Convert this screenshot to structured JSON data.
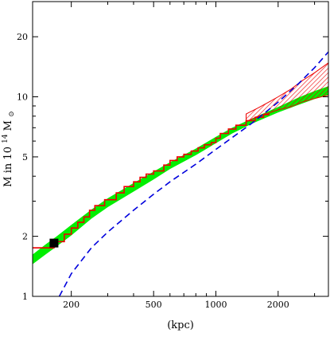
{
  "chart_data": {
    "type": "line",
    "title": "",
    "xlabel": "(kpc)",
    "ylabel_parts": {
      "prefix": "M in 10",
      "exp": "14",
      "unit": " M",
      "sub": "⊙"
    },
    "xscale": "log",
    "yscale": "log",
    "xlim": [
      130,
      3500
    ],
    "ylim": [
      1,
      30
    ],
    "xticks": [
      200,
      500,
      1000,
      2000
    ],
    "xtick_labels": [
      "200",
      "500",
      "1000",
      "2000"
    ],
    "yticks": [
      1,
      2,
      5,
      10,
      20
    ],
    "ytick_labels": [
      "1",
      "2",
      "5",
      "10",
      "20"
    ],
    "grid": false,
    "legend": "none",
    "series": [
      {
        "style": "green-band",
        "color": "#00ee00",
        "x": [
          130,
          150,
          170,
          200,
          250,
          300,
          400,
          500,
          600,
          800,
          1000,
          1200,
          1500,
          2000,
          2500,
          3000,
          3500
        ],
        "y_low": [
          1.45,
          1.62,
          1.78,
          2.02,
          2.45,
          2.8,
          3.35,
          3.85,
          4.35,
          5.1,
          5.85,
          6.55,
          7.35,
          8.35,
          9.1,
          9.75,
          10.2
        ],
        "y_high": [
          1.62,
          1.82,
          2.0,
          2.28,
          2.72,
          3.1,
          3.7,
          4.22,
          4.7,
          5.5,
          6.3,
          7.0,
          7.8,
          8.9,
          9.9,
          10.7,
          11.3
        ]
      },
      {
        "style": "red-hatched-band",
        "color": "#ee0000",
        "x": [
          1400,
          1600,
          1800,
          2000,
          2300,
          2600,
          3000,
          3500
        ],
        "y_low": [
          7.5,
          8.0,
          8.3,
          8.6,
          8.9,
          9.4,
          9.8,
          10.2
        ],
        "y_high": [
          8.2,
          8.8,
          9.4,
          10.0,
          10.9,
          12.0,
          13.2,
          14.8
        ]
      },
      {
        "style": "red-step",
        "color": "#ee0000",
        "x": [
          130,
          165,
          168,
          185,
          200,
          215,
          230,
          245,
          260,
          290,
          330,
          360,
          400,
          430,
          460,
          500,
          560,
          600,
          650,
          700,
          760,
          820,
          880,
          950,
          1000,
          1050,
          1150,
          1250,
          1400,
          1550,
          1700,
          1800
        ],
        "y": [
          1.75,
          1.78,
          1.88,
          2.05,
          2.2,
          2.35,
          2.5,
          2.7,
          2.85,
          3.05,
          3.3,
          3.55,
          3.75,
          3.95,
          4.1,
          4.25,
          4.55,
          4.8,
          5.0,
          5.15,
          5.35,
          5.55,
          5.75,
          5.9,
          6.2,
          6.55,
          6.9,
          7.2,
          7.6,
          7.9,
          8.15,
          8.3
        ]
      },
      {
        "style": "blue-dashed",
        "color": "#0000dd",
        "x": [
          175,
          200,
          250,
          300,
          400,
          500,
          600,
          800,
          1000,
          1200,
          1500,
          2000,
          2500,
          3000,
          3500
        ],
        "y": [
          1.0,
          1.3,
          1.75,
          2.1,
          2.7,
          3.25,
          3.75,
          4.6,
          5.45,
          6.25,
          7.4,
          9.4,
          11.6,
          14.0,
          16.8
        ]
      },
      {
        "style": "black-square-marker",
        "color": "#000000",
        "x": [
          165
        ],
        "y": [
          1.85
        ]
      }
    ]
  }
}
